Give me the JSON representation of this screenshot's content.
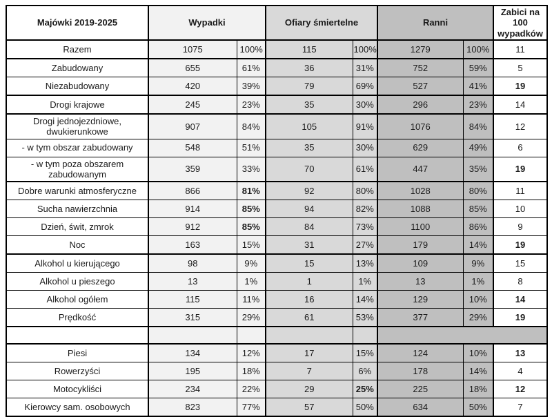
{
  "colors": {
    "wypadki_bg": "#f2f2f2",
    "ofiary_bg": "#d9d9d9",
    "ranni_bg": "#bfbfbf",
    "border": "#000000",
    "text": "#1a1a1a"
  },
  "chart_data": {
    "type": "table",
    "title": "Majówki 2019-2025",
    "column_groups": [
      {
        "key": "wypadki",
        "label": "Wypadki"
      },
      {
        "key": "ofiary",
        "label": "Ofiary śmiertelne"
      },
      {
        "key": "ranni",
        "label": "Ranni"
      },
      {
        "key": "zabici",
        "label": "Zabici na 100 wypadków"
      }
    ],
    "rows": [
      {
        "label": "Razem",
        "w": "1075",
        "wp": "100%",
        "o": "115",
        "op": "100%",
        "r": "1279",
        "rp": "100%",
        "z": "11",
        "bold": [],
        "thickTop": false,
        "empty": false
      },
      {
        "label": "Zabudowany",
        "w": "655",
        "wp": "61%",
        "o": "36",
        "op": "31%",
        "r": "752",
        "rp": "59%",
        "z": "5",
        "bold": [],
        "thickTop": true,
        "empty": false
      },
      {
        "label": "Niezabudowany",
        "w": "420",
        "wp": "39%",
        "o": "79",
        "op": "69%",
        "r": "527",
        "rp": "41%",
        "z": "19",
        "bold": [
          "z"
        ],
        "thickTop": false,
        "empty": false
      },
      {
        "label": "Drogi krajowe",
        "w": "245",
        "wp": "23%",
        "o": "35",
        "op": "30%",
        "r": "296",
        "rp": "23%",
        "z": "14",
        "bold": [],
        "thickTop": true,
        "empty": false
      },
      {
        "label": "Drogi jednojezdniowe, dwukierunkowe",
        "w": "907",
        "wp": "84%",
        "o": "105",
        "op": "91%",
        "r": "1076",
        "rp": "84%",
        "z": "12",
        "bold": [],
        "thickTop": true,
        "empty": false
      },
      {
        "label": "- w tym obszar zabudowany",
        "w": "548",
        "wp": "51%",
        "o": "35",
        "op": "30%",
        "r": "629",
        "rp": "49%",
        "z": "6",
        "bold": [],
        "thickTop": false,
        "empty": false
      },
      {
        "label": "- w tym poza obszarem zabudowanym",
        "w": "359",
        "wp": "33%",
        "o": "70",
        "op": "61%",
        "r": "447",
        "rp": "35%",
        "z": "19",
        "bold": [
          "z"
        ],
        "thickTop": false,
        "empty": false
      },
      {
        "label": "Dobre warunki atmosferyczne",
        "w": "866",
        "wp": "81%",
        "o": "92",
        "op": "80%",
        "r": "1028",
        "rp": "80%",
        "z": "11",
        "bold": [
          "wp"
        ],
        "thickTop": true,
        "empty": false
      },
      {
        "label": "Sucha nawierzchnia",
        "w": "914",
        "wp": "85%",
        "o": "94",
        "op": "82%",
        "r": "1088",
        "rp": "85%",
        "z": "10",
        "bold": [
          "wp"
        ],
        "thickTop": false,
        "empty": false
      },
      {
        "label": "Dzień, świt, zmrok",
        "w": "912",
        "wp": "85%",
        "o": "84",
        "op": "73%",
        "r": "1100",
        "rp": "86%",
        "z": "9",
        "bold": [
          "wp"
        ],
        "thickTop": false,
        "empty": false
      },
      {
        "label": "Noc",
        "w": "163",
        "wp": "15%",
        "o": "31",
        "op": "27%",
        "r": "179",
        "rp": "14%",
        "z": "19",
        "bold": [
          "z"
        ],
        "thickTop": false,
        "empty": false
      },
      {
        "label": "Alkohol u kierującego",
        "w": "98",
        "wp": "9%",
        "o": "15",
        "op": "13%",
        "r": "109",
        "rp": "9%",
        "z": "15",
        "bold": [],
        "thickTop": true,
        "empty": false
      },
      {
        "label": "Alkohol u pieszego",
        "w": "13",
        "wp": "1%",
        "o": "1",
        "op": "1%",
        "r": "13",
        "rp": "1%",
        "z": "8",
        "bold": [],
        "thickTop": false,
        "empty": false
      },
      {
        "label": "Alkohol ogółem",
        "w": "115",
        "wp": "11%",
        "o": "16",
        "op": "14%",
        "r": "129",
        "rp": "10%",
        "z": "14",
        "bold": [
          "z"
        ],
        "thickTop": false,
        "empty": false
      },
      {
        "label": "Prędkość",
        "w": "315",
        "wp": "29%",
        "o": "61",
        "op": "53%",
        "r": "377",
        "rp": "29%",
        "z": "19",
        "bold": [
          "z"
        ],
        "thickTop": false,
        "empty": false
      },
      {
        "label": "",
        "w": "",
        "wp": "",
        "o": "",
        "op": "",
        "r": "",
        "rp": "",
        "z": "",
        "bold": [],
        "thickTop": true,
        "empty": true
      },
      {
        "label": "Piesi",
        "w": "134",
        "wp": "12%",
        "o": "17",
        "op": "15%",
        "r": "124",
        "rp": "10%",
        "z": "13",
        "bold": [
          "z"
        ],
        "thickTop": true,
        "empty": false
      },
      {
        "label": "Rowerzyści",
        "w": "195",
        "wp": "18%",
        "o": "7",
        "op": "6%",
        "r": "178",
        "rp": "14%",
        "z": "4",
        "bold": [],
        "thickTop": false,
        "empty": false
      },
      {
        "label": "Motocykliści",
        "w": "234",
        "wp": "22%",
        "o": "29",
        "op": "25%",
        "r": "225",
        "rp": "18%",
        "z": "12",
        "bold": [
          "op",
          "z"
        ],
        "thickTop": false,
        "empty": false
      },
      {
        "label": "Kierowcy sam. osobowych",
        "w": "823",
        "wp": "77%",
        "o": "57",
        "op": "50%",
        "r": "634",
        "rp": "50%",
        "z": "7",
        "bold": [],
        "thickTop": false,
        "empty": false
      }
    ]
  }
}
